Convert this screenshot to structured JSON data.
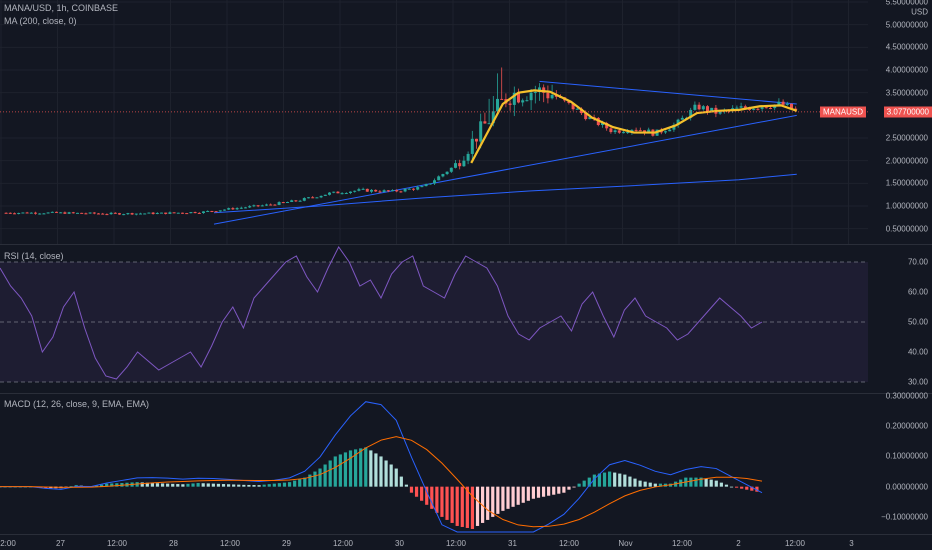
{
  "main": {
    "symbol": "MANA/USD, 1h, COINBASE",
    "ma_label": "MA (200, close, 0)",
    "currency": "USD",
    "last_price": "3.07700000",
    "last_price_symbol": "MANAUSD",
    "y_ticks": [
      {
        "label": "5.50000000",
        "value": 5.5
      },
      {
        "label": "5.00000000",
        "value": 5.0
      },
      {
        "label": "4.50000000",
        "value": 4.5
      },
      {
        "label": "4.00000000",
        "value": 4.0
      },
      {
        "label": "3.50000000",
        "value": 3.5
      },
      {
        "label": "2.50000000",
        "value": 2.5
      },
      {
        "label": "2.00000000",
        "value": 2.0
      },
      {
        "label": "1.50000000",
        "value": 1.5
      },
      {
        "label": "1.00000000",
        "value": 1.0
      },
      {
        "label": "0.50000000",
        "value": 0.5
      }
    ]
  },
  "rsi": {
    "label": "RSI (14, close)",
    "y_ticks": [
      {
        "label": "70.00",
        "value": 70
      },
      {
        "label": "60.00",
        "value": 60
      },
      {
        "label": "50.00",
        "value": 50
      },
      {
        "label": "40.00",
        "value": 40
      },
      {
        "label": "30.00",
        "value": 30
      }
    ]
  },
  "macd": {
    "label": "MACD (12, 26, close, 9, EMA, EMA)",
    "y_ticks": [
      {
        "label": "0.30000000",
        "value": 0.3
      },
      {
        "label": "0.20000000",
        "value": 0.2
      },
      {
        "label": "0.10000000",
        "value": 0.1
      },
      {
        "label": "0.00000000",
        "value": 0.0
      },
      {
        "label": "−0.10000000",
        "value": -0.1
      }
    ]
  },
  "x_axis": {
    "ticks": [
      "2:00",
      "27",
      "12:00",
      "28",
      "12:00",
      "29",
      "12:00",
      "30",
      "12:00",
      "31",
      "12:00",
      "Nov",
      "12:00",
      "2",
      "12:00",
      "3"
    ]
  },
  "colors": {
    "background": "#131722",
    "up": "#26a69a",
    "down": "#ef5350",
    "ma": "#f5c02b",
    "ma200": "#2962ff",
    "rsi": "#7e57c2",
    "macd": "#2962ff",
    "signal": "#ff6d00",
    "hist_up_strong": "#26a69a",
    "hist_up_weak": "#b2dfdb",
    "hist_down_strong": "#ff5252",
    "hist_down_weak": "#ffcdd2"
  },
  "chart_data": [
    {
      "type": "candlestick",
      "title": "MANA/USD, 1h, COINBASE",
      "ylabel": "USD",
      "ylim": [
        0.25,
        5.5
      ],
      "x": [
        "27",
        "28",
        "29",
        "30",
        "31",
        "Nov",
        "2",
        "3"
      ],
      "close_path": [
        [
          0,
          0.85
        ],
        [
          0.5,
          0.85
        ],
        [
          1,
          0.83
        ],
        [
          1.5,
          0.84
        ],
        [
          1.9,
          0.87
        ],
        [
          2.2,
          0.95
        ],
        [
          2.5,
          1.02
        ],
        [
          2.8,
          1.12
        ],
        [
          3.1,
          1.28
        ],
        [
          3.4,
          1.35
        ],
        [
          3.7,
          1.32
        ],
        [
          4.0,
          1.42
        ],
        [
          4.3,
          1.9
        ],
        [
          4.5,
          2.55
        ],
        [
          4.65,
          3.0
        ],
        [
          4.8,
          3.45
        ],
        [
          5.0,
          3.55
        ],
        [
          5.2,
          3.5
        ],
        [
          5.4,
          3.2
        ],
        [
          5.6,
          2.9
        ],
        [
          5.8,
          2.65
        ],
        [
          6.0,
          2.72
        ],
        [
          6.2,
          2.6
        ],
        [
          6.4,
          2.8
        ],
        [
          6.6,
          3.2
        ],
        [
          6.8,
          3.05
        ],
        [
          7.0,
          3.15
        ],
        [
          7.2,
          3.2
        ],
        [
          7.4,
          3.25
        ],
        [
          7.55,
          3.1
        ]
      ],
      "ma_smooth": [
        [
          4.45,
          1.95
        ],
        [
          4.6,
          2.6
        ],
        [
          4.75,
          3.25
        ],
        [
          4.9,
          3.5
        ],
        [
          5.05,
          3.55
        ],
        [
          5.2,
          3.52
        ],
        [
          5.4,
          3.3
        ],
        [
          5.6,
          2.95
        ],
        [
          5.8,
          2.74
        ],
        [
          6.0,
          2.62
        ],
        [
          6.2,
          2.62
        ],
        [
          6.4,
          2.78
        ],
        [
          6.6,
          3.05
        ],
        [
          6.8,
          3.1
        ],
        [
          7.0,
          3.12
        ],
        [
          7.2,
          3.2
        ],
        [
          7.4,
          3.22
        ],
        [
          7.55,
          3.1
        ]
      ],
      "ma200": [
        [
          2.0,
          0.85
        ],
        [
          3.0,
          1.0
        ],
        [
          4.0,
          1.18
        ],
        [
          5.0,
          1.33
        ],
        [
          6.0,
          1.45
        ],
        [
          7.0,
          1.58
        ],
        [
          7.55,
          1.7
        ]
      ],
      "trendlines": [
        {
          "from": [
            2.0,
            0.6
          ],
          "to": [
            7.55,
            3.0
          ]
        },
        {
          "from": [
            5.1,
            3.75
          ],
          "to": [
            7.55,
            3.25
          ]
        }
      ],
      "last_price": 3.077
    },
    {
      "type": "line",
      "title": "RSI (14, close)",
      "ylim": [
        27,
        75
      ],
      "bands": [
        70,
        50,
        30
      ],
      "series": [
        {
          "name": "RSI",
          "values": [
            68,
            62,
            58,
            52,
            40,
            45,
            55,
            60,
            48,
            38,
            32,
            31,
            35,
            40,
            37,
            34,
            36,
            38,
            40,
            35,
            42,
            50,
            55,
            48,
            58,
            62,
            66,
            70,
            72,
            65,
            60,
            68,
            75,
            70,
            62,
            64,
            58,
            66,
            70,
            72,
            62,
            60,
            58,
            66,
            72,
            70,
            68,
            62,
            52,
            46,
            44,
            48,
            50,
            52,
            47,
            56,
            60,
            52,
            45,
            54,
            58,
            52,
            50,
            48,
            44,
            46,
            50,
            54,
            58,
            55,
            52,
            48,
            50
          ]
        }
      ]
    },
    {
      "type": "bar",
      "title": "MACD (12, 26, close, 9, EMA, EMA)",
      "ylim": [
        -0.15,
        0.3
      ],
      "series": [
        {
          "name": "Histogram",
          "values": [
            0,
            0,
            0,
            -0.005,
            -0.005,
            0.005,
            0,
            0.01,
            0.012,
            0.015,
            0.012,
            0.01,
            0.008,
            0.012,
            0.01,
            0.008,
            0.006,
            0.005,
            0.01,
            0.015,
            0.03,
            0.06,
            0.1,
            0.12,
            0.13,
            0.1,
            0.06,
            -0.02,
            -0.06,
            -0.1,
            -0.13,
            -0.14,
            -0.11,
            -0.08,
            -0.06,
            -0.04,
            -0.03,
            -0.02,
            0.01,
            0.04,
            0.05,
            0.04,
            0.02,
            0.01,
            0.01,
            0.03,
            0.03,
            0.02,
            0.0,
            -0.01,
            -0.02
          ]
        }
      ]
    }
  ]
}
